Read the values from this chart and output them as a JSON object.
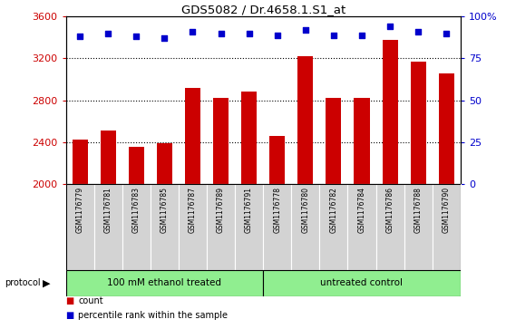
{
  "title": "GDS5082 / Dr.4658.1.S1_at",
  "samples": [
    "GSM1176779",
    "GSM1176781",
    "GSM1176783",
    "GSM1176785",
    "GSM1176787",
    "GSM1176789",
    "GSM1176791",
    "GSM1176778",
    "GSM1176780",
    "GSM1176782",
    "GSM1176784",
    "GSM1176786",
    "GSM1176788",
    "GSM1176790"
  ],
  "counts": [
    2430,
    2510,
    2360,
    2390,
    2920,
    2820,
    2880,
    2460,
    3220,
    2820,
    2820,
    3380,
    3170,
    3060
  ],
  "percentiles": [
    88,
    90,
    88,
    87,
    91,
    90,
    90,
    89,
    92,
    89,
    89,
    94,
    91,
    90
  ],
  "group1_label": "100 mM ethanol treated",
  "group2_label": "untreated control",
  "group1_count": 7,
  "group2_count": 7,
  "ylim_left": [
    2000,
    3600
  ],
  "ylim_right": [
    0,
    100
  ],
  "yticks_left": [
    2000,
    2400,
    2800,
    3200,
    3600
  ],
  "yticks_right": [
    0,
    25,
    50,
    75,
    100
  ],
  "bar_color": "#cc0000",
  "dot_color": "#0000cc",
  "group_bg_color": "#90ee90",
  "xlabel_area_bg": "#d3d3d3",
  "legend_count_label": "count",
  "legend_pct_label": "percentile rank within the sample",
  "protocol_label": "protocol"
}
